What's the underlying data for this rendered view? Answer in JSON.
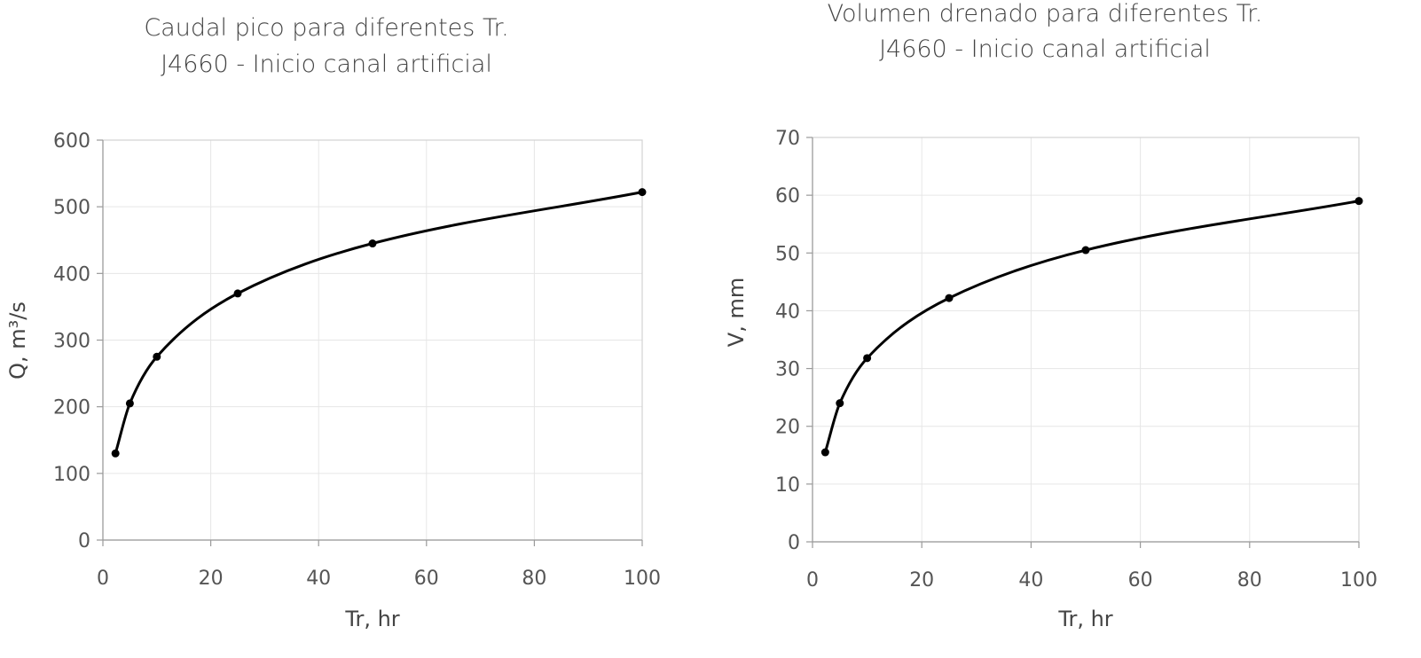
{
  "chart_data": [
    {
      "type": "line",
      "title": [
        "Caudal pico para diferentes Tr.",
        "J4660 - Inicio canal artificial"
      ],
      "xlabel": "Tr, hr",
      "ylabel": "Q, m³/s",
      "xlim": [
        0,
        100
      ],
      "ylim": [
        0,
        600
      ],
      "xticks": [
        0,
        20,
        40,
        60,
        80,
        100
      ],
      "yticks": [
        0,
        100,
        200,
        300,
        400,
        500,
        600
      ],
      "grid": true,
      "legend": "none",
      "series": [
        {
          "x": [
            2.33,
            5,
            10,
            25,
            50,
            100
          ],
          "y": [
            130,
            205,
            275,
            370,
            445,
            522
          ],
          "color": "#000000"
        }
      ]
    },
    {
      "type": "line",
      "title": [
        "Volumen drenado para diferentes Tr.",
        "J4660 - Inicio canal artificial"
      ],
      "xlabel": "Tr, hr",
      "ylabel": "V, mm",
      "xlim": [
        0,
        100
      ],
      "ylim": [
        0,
        70
      ],
      "xticks": [
        0,
        20,
        40,
        60,
        80,
        100
      ],
      "yticks": [
        0,
        10,
        20,
        30,
        40,
        50,
        60,
        70
      ],
      "grid": true,
      "legend": "none",
      "series": [
        {
          "x": [
            2.33,
            5,
            10,
            25,
            50,
            100
          ],
          "y": [
            15.5,
            24,
            31.8,
            42.2,
            50.5,
            59
          ],
          "color": "#000000"
        }
      ]
    }
  ]
}
